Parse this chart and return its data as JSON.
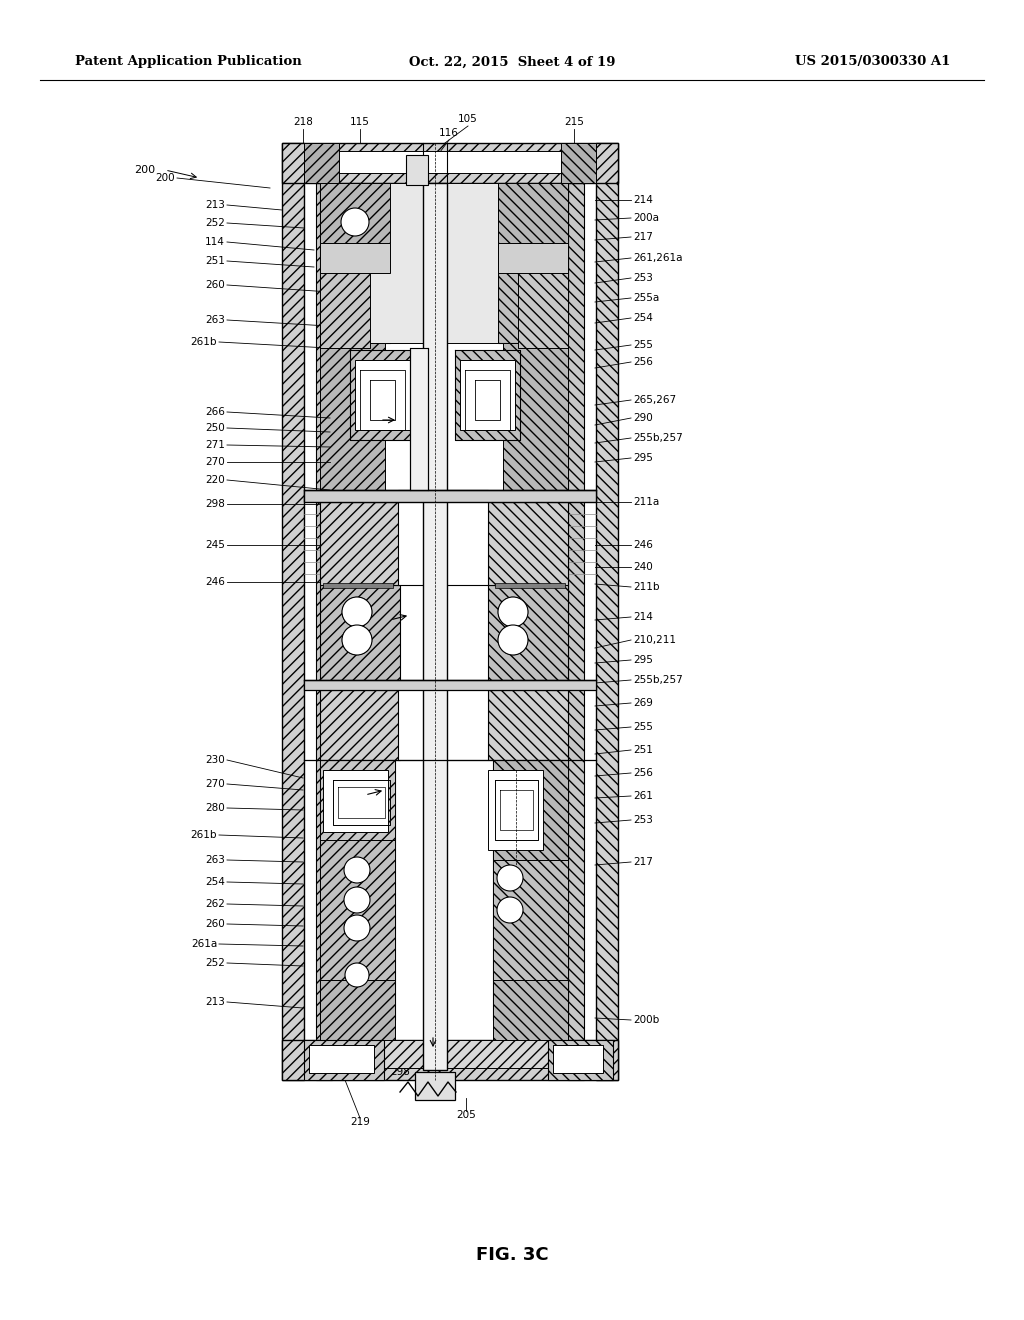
{
  "page_header_left": "Patent Application Publication",
  "page_header_center": "Oct. 22, 2015  Sheet 4 of 19",
  "page_header_right": "US 2015/0300330 A1",
  "figure_label": "FIG. 3C",
  "bg_color": "#ffffff",
  "line_color": "#000000",
  "label_fontsize": 7.5,
  "header_fontsize": 9.5,
  "fig_label_fontsize": 13
}
